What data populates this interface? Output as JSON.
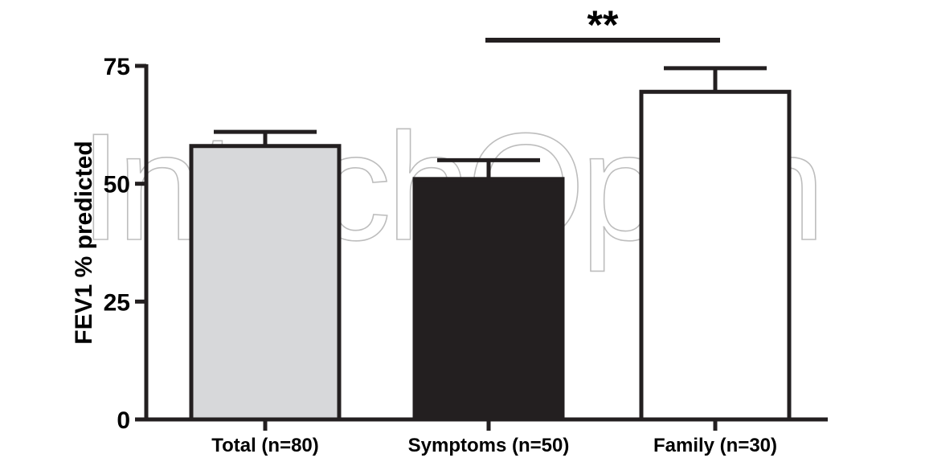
{
  "watermark_text": "IntechOpen",
  "chart_data": {
    "type": "bar",
    "title": "",
    "xlabel": "",
    "ylabel": "FEV1 % predicted",
    "ylim": [
      0,
      75
    ],
    "yticks": [
      0,
      25,
      50,
      75
    ],
    "ytick_labels": [
      "0",
      "25",
      "50",
      "75"
    ],
    "categories": [
      "Total (n=80)",
      "Symptoms (n=50)",
      "Family (n=30)"
    ],
    "values": [
      58,
      51,
      69.5
    ],
    "error_upper": [
      61,
      55,
      74.5
    ],
    "bar_colors": [
      "#d7d8da",
      "#231f20",
      "#ffffff"
    ],
    "edge_color": "#231f20",
    "grid": false,
    "legend": "none",
    "annotations": [
      {
        "text": "**",
        "between": [
          "Symptoms (n=50)",
          "Family (n=30)"
        ]
      }
    ]
  }
}
